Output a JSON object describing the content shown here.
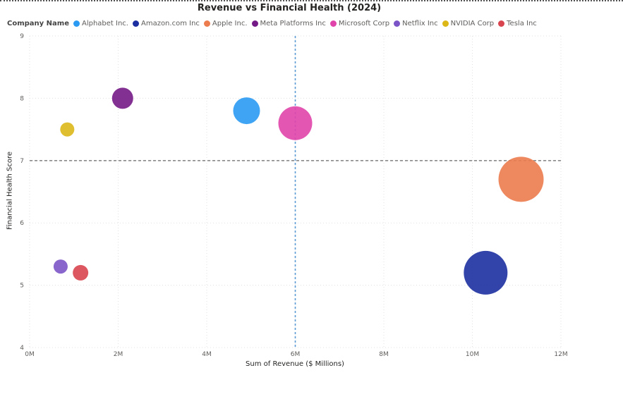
{
  "chart_data": {
    "type": "scatter",
    "title": "Revenue vs Financial Health (2024)",
    "legend_title": "Company Name",
    "legend_position": "top-left",
    "xlabel": "Sum of Revenue ($ Millions)",
    "ylabel": "Financial Health Score",
    "xlim": [
      0,
      12000000
    ],
    "ylim": [
      4,
      9
    ],
    "x_ticks": [
      "0M",
      "2M",
      "4M",
      "6M",
      "8M",
      "10M",
      "12M"
    ],
    "y_ticks": [
      "4",
      "5",
      "6",
      "7",
      "8",
      "9"
    ],
    "grid": true,
    "reference_lines": {
      "x": 6000000,
      "y": 7
    },
    "series": [
      {
        "name": "Alphabet Inc.",
        "color": "#2b9af3",
        "x": 4900000,
        "y": 7.8,
        "size": 19
      },
      {
        "name": "Amazon.com Inc",
        "color": "#1c2fa0",
        "x": 10300000,
        "y": 5.2,
        "size": 31
      },
      {
        "name": "Apple Inc.",
        "color": "#ec7b4e",
        "x": 11100000,
        "y": 6.7,
        "size": 32
      },
      {
        "name": "Meta Platforms Inc",
        "color": "#741a86",
        "x": 2100000,
        "y": 8.0,
        "size": 15
      },
      {
        "name": "Microsoft Corp",
        "color": "#e044aa",
        "x": 6000000,
        "y": 7.6,
        "size": 24
      },
      {
        "name": "Netflix Inc",
        "color": "#7b55c7",
        "x": 700000,
        "y": 5.3,
        "size": 10
      },
      {
        "name": "NVIDIA Corp",
        "color": "#dcb718",
        "x": 850000,
        "y": 7.5,
        "size": 10
      },
      {
        "name": "Tesla Inc",
        "color": "#d9454f",
        "x": 1150000,
        "y": 5.2,
        "size": 11
      }
    ]
  }
}
